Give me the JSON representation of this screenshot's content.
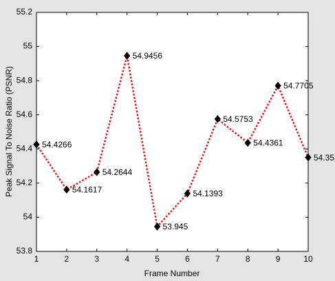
{
  "chart_data": {
    "type": "line",
    "xlabel": "Frame Number",
    "ylabel": "Peak Signal To Noise Ratio (PSNR)",
    "x": [
      1,
      2,
      3,
      4,
      5,
      6,
      7,
      8,
      9,
      10
    ],
    "series": [
      {
        "color": "#e8100e",
        "values": [
          54.4266,
          54.1617,
          54.2644,
          54.9456,
          53.945,
          54.1393,
          54.5753,
          54.4361,
          54.7705,
          54.35
        ]
      }
    ],
    "marker_color": "#000000",
    "xlim": [
      1,
      10
    ],
    "xticks": [
      1,
      2,
      3,
      4,
      5,
      6,
      7,
      8,
      9,
      10
    ],
    "ylim": [
      53.8,
      55.2
    ],
    "yticks": [
      53.8,
      54,
      54.2,
      54.4,
      54.6,
      54.8,
      55,
      55.2
    ],
    "grid": false
  }
}
